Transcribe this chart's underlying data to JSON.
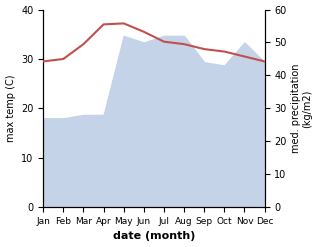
{
  "months": [
    "Jan",
    "Feb",
    "Mar",
    "Apr",
    "May",
    "Jun",
    "Jul",
    "Aug",
    "Sep",
    "Oct",
    "Nov",
    "Dec"
  ],
  "max_temp": [
    29.5,
    30.0,
    33.0,
    37.0,
    37.2,
    35.5,
    33.5,
    33.0,
    32.0,
    31.5,
    30.5,
    29.5
  ],
  "precipitation": [
    27.0,
    27.0,
    28.0,
    28.0,
    52.0,
    50.0,
    52.0,
    52.0,
    44.0,
    43.0,
    50.0,
    44.0
  ],
  "temp_color": "#c0504d",
  "precip_fill_color": "#c5d3e8",
  "xlabel": "date (month)",
  "ylabel_left": "max temp (C)",
  "ylabel_right": "med. precipitation\n(kg/m2)",
  "ylim_left": [
    0,
    40
  ],
  "ylim_right": [
    0,
    60
  ],
  "yticks_left": [
    0,
    10,
    20,
    30,
    40
  ],
  "yticks_right": [
    0,
    10,
    20,
    30,
    40,
    50,
    60
  ],
  "background_color": "#ffffff"
}
